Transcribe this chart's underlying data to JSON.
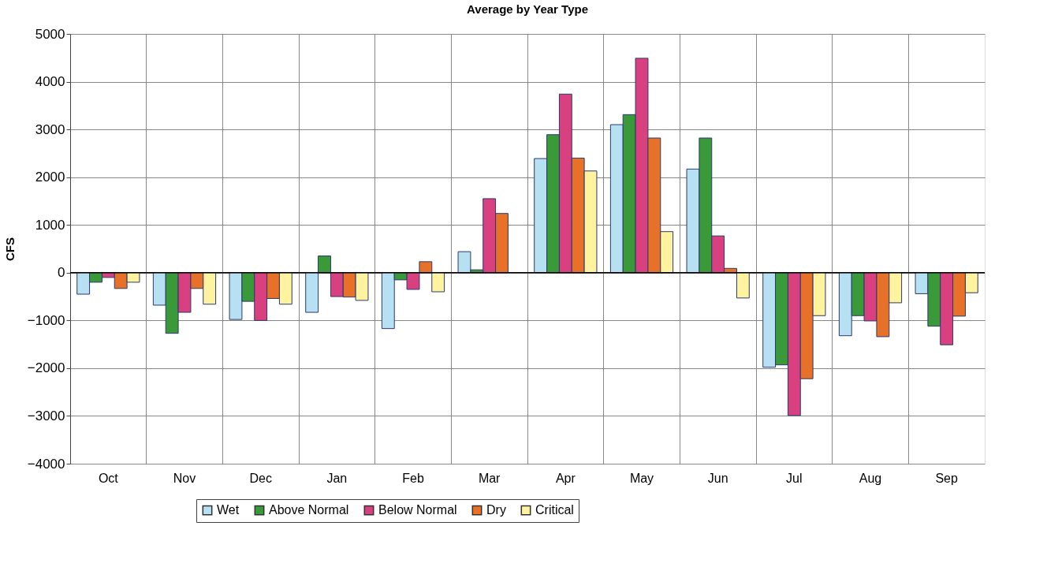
{
  "chart_data": {
    "type": "bar",
    "title": "Average by Year Type",
    "ylabel": "CFS",
    "categories": [
      "Oct",
      "Nov",
      "Dec",
      "Jan",
      "Feb",
      "Mar",
      "Apr",
      "May",
      "Jun",
      "Jul",
      "Aug",
      "Sep"
    ],
    "series": [
      {
        "name": "Wet",
        "color": "#b7e0f2",
        "values": [
          -450,
          -680,
          -980,
          -830,
          -1170,
          440,
          2390,
          3100,
          2170,
          -1980,
          -1320,
          -440
        ]
      },
      {
        "name": "Above Normal",
        "color": "#3a9a3a",
        "values": [
          -200,
          -1270,
          -600,
          350,
          -150,
          60,
          2890,
          3310,
          2820,
          -1930,
          -900,
          -1120
        ]
      },
      {
        "name": "Below Normal",
        "color": "#d9407f",
        "values": [
          -100,
          -830,
          -1000,
          -500,
          -350,
          1550,
          3740,
          4490,
          770,
          -2990,
          -1010,
          -1510
        ]
      },
      {
        "name": "Dry",
        "color": "#e8712a",
        "values": [
          -330,
          -330,
          -540,
          -510,
          230,
          1240,
          2400,
          2820,
          90,
          -2220,
          -1340,
          -910
        ]
      },
      {
        "name": "Critical",
        "color": "#fff3a0",
        "values": [
          -200,
          -660,
          -660,
          -580,
          -400,
          null,
          2130,
          860,
          -530,
          -900,
          -630,
          -420
        ]
      }
    ],
    "ylim": [
      -4000,
      5000
    ],
    "yticks": [
      -4000,
      -3000,
      -2000,
      -1000,
      0,
      1000,
      2000,
      3000,
      4000,
      5000
    ],
    "grid": true,
    "legend": "bottom"
  }
}
